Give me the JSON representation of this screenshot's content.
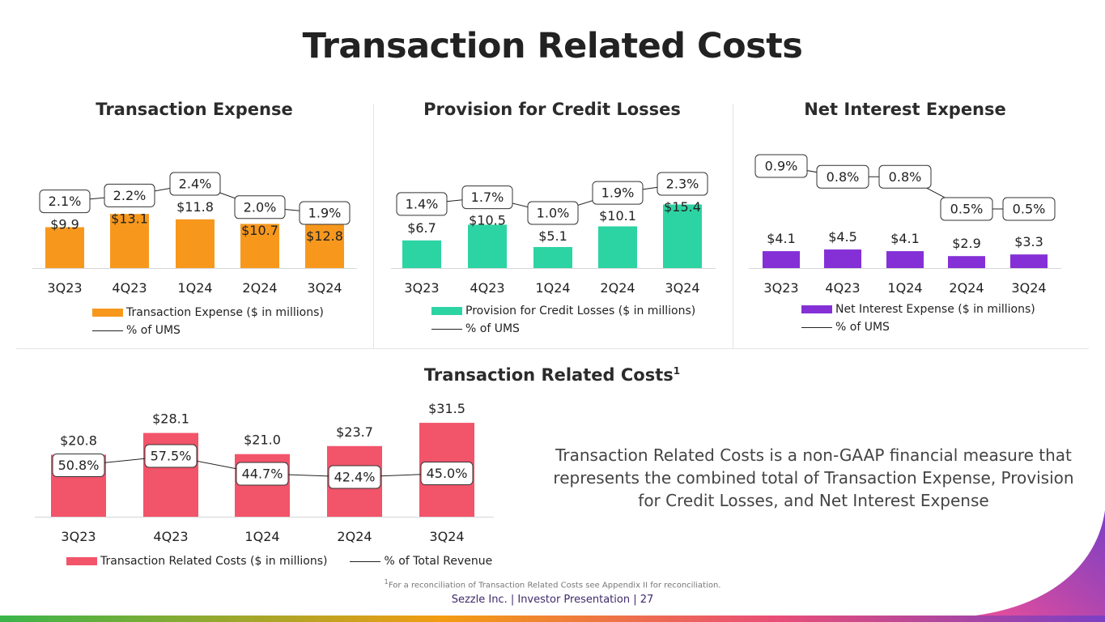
{
  "title": "Transaction Related Costs",
  "categories": [
    "3Q23",
    "4Q23",
    "1Q24",
    "2Q24",
    "3Q24"
  ],
  "colors": {
    "transaction_expense": "#f7981d",
    "provision": "#2dd4a3",
    "net_interest": "#8430d6",
    "total": "#f2546a"
  },
  "chart_data": [
    {
      "type": "bar",
      "title": "Transaction Expense",
      "categories": [
        "3Q23",
        "4Q23",
        "1Q24",
        "2Q24",
        "3Q24"
      ],
      "values": [
        9.9,
        13.1,
        11.8,
        10.7,
        12.8
      ],
      "value_labels": [
        "$9.9",
        "$13.1",
        "$11.8",
        "$10.7",
        "$12.8"
      ],
      "pct": [
        2.1,
        2.2,
        2.4,
        2.0,
        1.9
      ],
      "pct_labels": [
        "2.1%",
        "2.2%",
        "2.4%",
        "2.0%",
        "1.9%"
      ],
      "bar_legend": "Transaction Expense ($ in millions)",
      "line_legend": "% of UMS",
      "ylim": [
        0,
        20
      ],
      "pct_range": [
        0,
        3.5
      ]
    },
    {
      "type": "bar",
      "title": "Provision for Credit Losses",
      "categories": [
        "3Q23",
        "4Q23",
        "1Q24",
        "2Q24",
        "3Q24"
      ],
      "values": [
        6.7,
        10.5,
        5.1,
        10.1,
        15.4
      ],
      "value_labels": [
        "$6.7",
        "$10.5",
        "$5.1",
        "$10.1",
        "$15.4"
      ],
      "pct": [
        1.4,
        1.7,
        1.0,
        1.9,
        2.3
      ],
      "pct_labels": [
        "1.4%",
        "1.7%",
        "1.0%",
        "1.9%",
        "2.3%"
      ],
      "bar_legend": "Provision for Credit Losses ($ in millions)",
      "line_legend": "% of UMS",
      "ylim": [
        0,
        20
      ],
      "pct_range": [
        0,
        3.5
      ]
    },
    {
      "type": "bar",
      "title": "Net Interest Expense",
      "categories": [
        "3Q23",
        "4Q23",
        "1Q24",
        "2Q24",
        "3Q24"
      ],
      "values": [
        4.1,
        4.5,
        4.1,
        2.9,
        3.3
      ],
      "value_labels": [
        "$4.1",
        "$4.5",
        "$4.1",
        "$2.9",
        "$3.3"
      ],
      "pct": [
        0.9,
        0.8,
        0.8,
        0.5,
        0.5
      ],
      "pct_labels": [
        "0.9%",
        "0.8%",
        "0.8%",
        "0.5%",
        "0.5%"
      ],
      "bar_legend": "Net Interest Expense ($ in millions)",
      "line_legend": "% of UMS",
      "ylim": [
        0,
        20
      ],
      "pct_range": [
        0,
        3.5
      ]
    },
    {
      "type": "bar",
      "title": "Transaction Related Costs",
      "title_superscript": "1",
      "categories": [
        "3Q23",
        "4Q23",
        "1Q24",
        "2Q24",
        "3Q24"
      ],
      "values": [
        20.8,
        28.1,
        21.0,
        23.7,
        31.5
      ],
      "value_labels": [
        "$20.8",
        "$28.1",
        "$21.0",
        "$23.7",
        "$31.5"
      ],
      "pct": [
        50.8,
        57.5,
        44.7,
        42.4,
        45.0
      ],
      "pct_labels": [
        "50.8%",
        "57.5%",
        "44.7%",
        "42.4%",
        "45.0%"
      ],
      "bar_legend": "Transaction Related Costs ($ in millions)",
      "line_legend": "% of Total Revenue",
      "ylim": [
        0,
        35
      ],
      "pct_range": [
        0,
        110
      ]
    }
  ],
  "summary": "Transaction Related Costs is a non-GAAP financial measure that represents the combined total of Transaction Expense, Provision for Credit Losses, and Net Interest Expense",
  "footnote_marker": "1",
  "footnote": "For a reconciliation of Transaction Related Costs see Appendix II for reconciliation.",
  "footer": "Sezzle Inc. | Investor Presentation | 27"
}
